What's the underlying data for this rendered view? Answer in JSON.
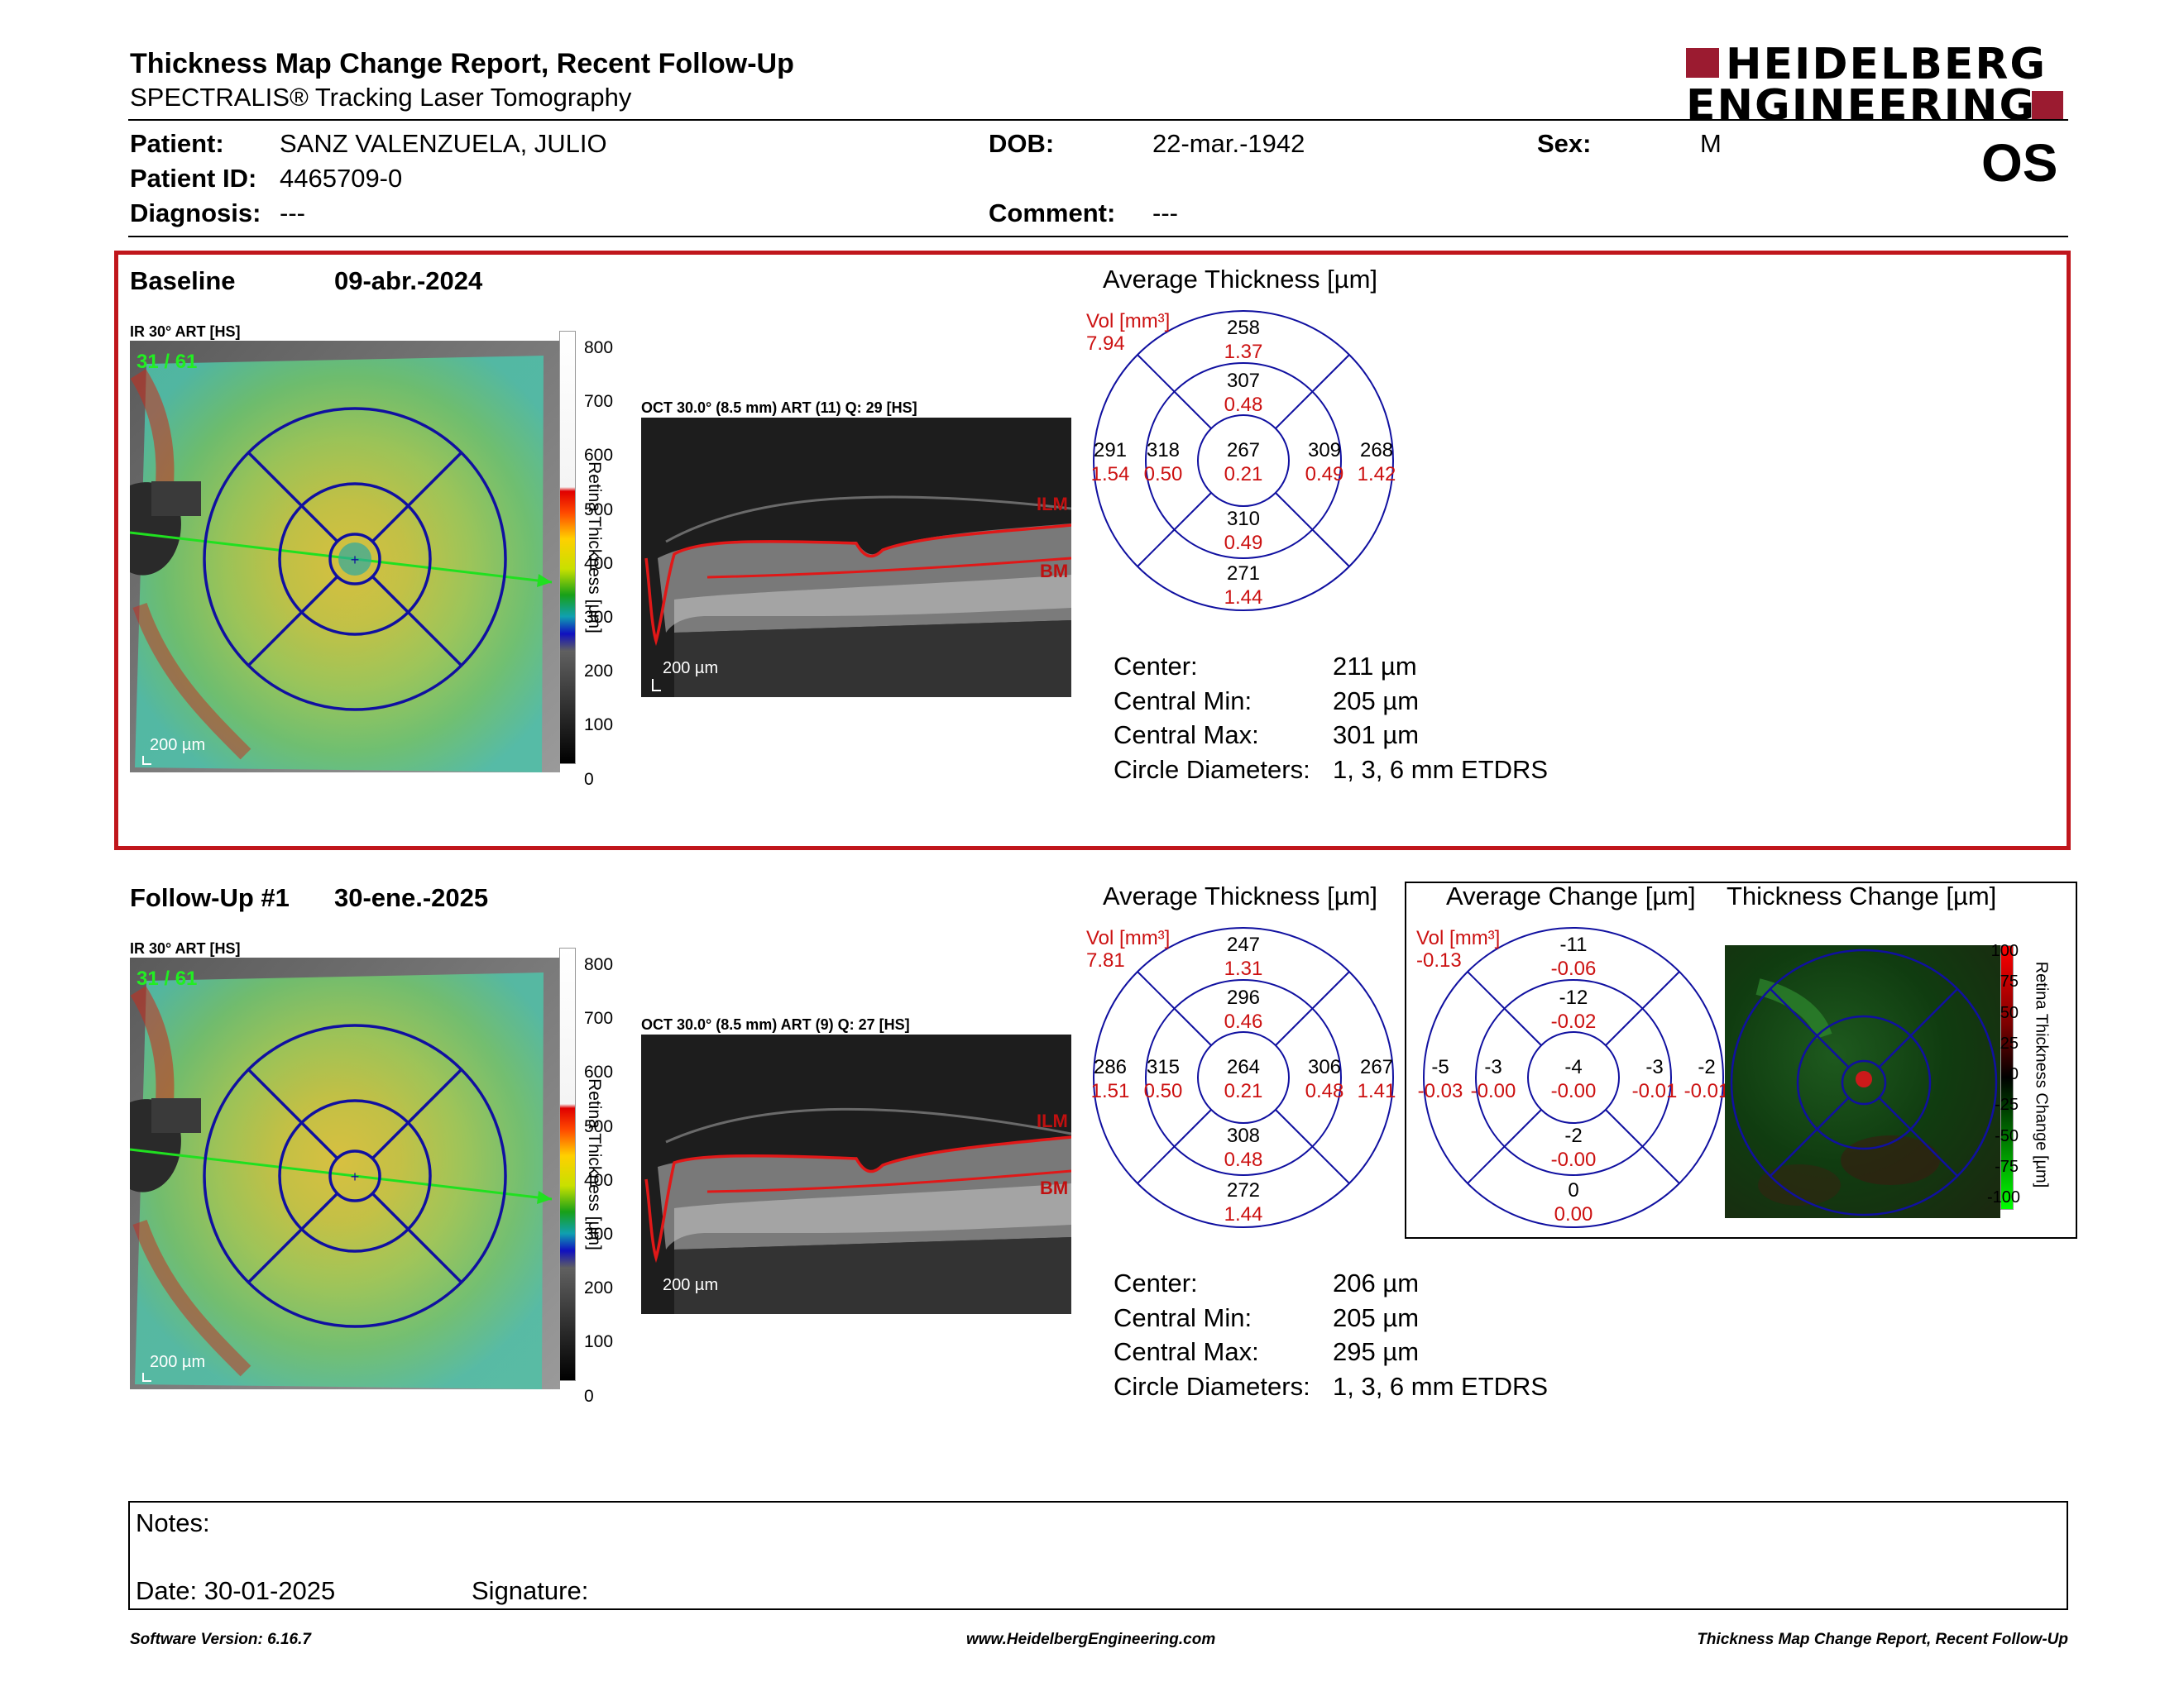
{
  "header": {
    "title": "Thickness Map Change Report, Recent Follow-Up",
    "subtitle": "SPECTRALIS® Tracking Laser Tomography",
    "logo_line1": "HEIDELBERG",
    "logo_line2": "ENGINEERING",
    "eye": "OS"
  },
  "patient": {
    "name_label": "Patient:",
    "name": "SANZ VALENZUELA, JULIO",
    "id_label": "Patient ID:",
    "id": "4465709-0",
    "diagnosis_label": "Diagnosis:",
    "diagnosis": "---",
    "dob_label": "DOB:",
    "dob": "22-mar.-1942",
    "comment_label": "Comment:",
    "comment": "---",
    "sex_label": "Sex:",
    "sex": "M"
  },
  "baseline": {
    "label": "Baseline",
    "date": "09-abr.-2024",
    "ir_label": "IR 30° ART [HS]",
    "frame": "31 / 61",
    "oct_label": "OCT 30.0° (8.5 mm) ART (11) Q: 29 [HS]",
    "scale_label": "200 µm",
    "colorbar_title": "Retina Thickness [µm]",
    "colorbar_ticks": [
      "800",
      "700",
      "600",
      "500",
      "400",
      "300",
      "200",
      "100",
      "0"
    ],
    "ilm": "ILM",
    "bm": "BM",
    "avg_title": "Average Thickness [µm]",
    "vol_label": "Vol [mm³]",
    "vol": "7.94",
    "etdrs": {
      "sup_out": "258",
      "sup_out_v": "1.37",
      "sup_in": "307",
      "sup_in_v": "0.48",
      "nas_out": "291",
      "nas_out_v": "1.54",
      "nas_in": "318",
      "nas_in_v": "0.50",
      "center": "267",
      "center_v": "0.21",
      "tmp_in": "309",
      "tmp_in_v": "0.49",
      "tmp_out": "268",
      "tmp_out_v": "1.42",
      "inf_in": "310",
      "inf_in_v": "0.49",
      "inf_out": "271",
      "inf_out_v": "1.44"
    },
    "stats": {
      "center_label": "Center:",
      "center": "211 µm",
      "min_label": "Central Min:",
      "min": "205 µm",
      "max_label": "Central Max:",
      "max": "301 µm",
      "diam_label": "Circle Diameters:",
      "diam": "1, 3, 6 mm ETDRS"
    }
  },
  "followup": {
    "label": "Follow-Up #1",
    "date": "30-ene.-2025",
    "ir_label": "IR 30° ART [HS]",
    "frame": "31 / 61",
    "oct_label": "OCT 30.0° (8.5 mm) ART (9) Q: 27 [HS]",
    "scale_label": "200 µm",
    "colorbar_title": "Retina Thickness [µm]",
    "colorbar_ticks": [
      "800",
      "700",
      "600",
      "500",
      "400",
      "300",
      "200",
      "100",
      "0"
    ],
    "ilm": "ILM",
    "bm": "BM",
    "avg_title": "Average Thickness [µm]",
    "vol_label": "Vol [mm³]",
    "vol": "7.81",
    "etdrs": {
      "sup_out": "247",
      "sup_out_v": "1.31",
      "sup_in": "296",
      "sup_in_v": "0.46",
      "nas_out": "286",
      "nas_out_v": "1.51",
      "nas_in": "315",
      "nas_in_v": "0.50",
      "center": "264",
      "center_v": "0.21",
      "tmp_in": "306",
      "tmp_in_v": "0.48",
      "tmp_out": "267",
      "tmp_out_v": "1.41",
      "inf_in": "308",
      "inf_in_v": "0.48",
      "inf_out": "272",
      "inf_out_v": "1.44"
    },
    "stats": {
      "center_label": "Center:",
      "center": "206 µm",
      "min_label": "Central Min:",
      "min": "205 µm",
      "max_label": "Central Max:",
      "max": "295 µm",
      "diam_label": "Circle Diameters:",
      "diam": "1, 3, 6 mm ETDRS"
    },
    "change_title": "Average Change [µm]",
    "change_vol_label": "Vol [mm³]",
    "change_vol": "-0.13",
    "change": {
      "sup_out": "-11",
      "sup_out_v": "-0.06",
      "sup_in": "-12",
      "sup_in_v": "-0.02",
      "nas_out": "-5",
      "nas_out_v": "-0.03",
      "nas_in": "-3",
      "nas_in_v": "-0.00",
      "center": "-4",
      "center_v": "-0.00",
      "tmp_in": "-3",
      "tmp_in_v": "-0.01",
      "tmp_out": "-2",
      "tmp_out_v": "-0.01",
      "inf_in": "-2",
      "inf_in_v": "-0.00",
      "inf_out": "0",
      "inf_out_v": "0.00"
    },
    "thick_change_title": "Thickness Change [µm]",
    "change_bar_title": "Retina Thickness Change [µm]",
    "change_bar_ticks": [
      "100",
      "75",
      "50",
      "25",
      "0",
      "-25",
      "-50",
      "-75",
      "-100"
    ]
  },
  "notes": {
    "notes_label": "Notes:",
    "date_label": "Date: 30-01-2025",
    "signature_label": "Signature:"
  },
  "footer": {
    "version": "Software Version: 6.16.7",
    "url": "www.HeidelbergEngineering.com",
    "report": "Thickness Map Change Report, Recent Follow-Up"
  },
  "colors": {
    "frame_red": "#c0161c",
    "etdrs_blue": "#1010a0",
    "value_red": "#cc1111",
    "logo_red": "#9b1b30"
  }
}
